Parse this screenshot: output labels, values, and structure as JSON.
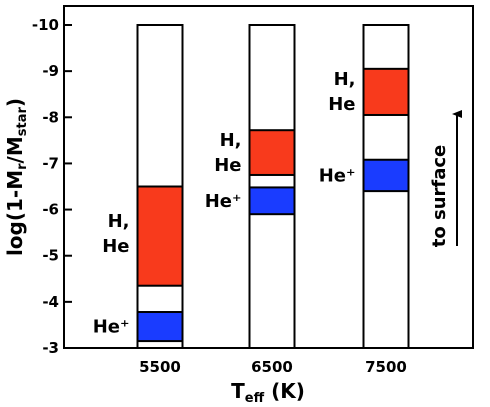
{
  "colors": {
    "h_he": "#f83a1c",
    "he_plus": "#1a3cff",
    "column": "#ffffff",
    "frame": "#000000"
  },
  "chart_data": {
    "type": "bar",
    "title": "",
    "xlabel": {
      "main": "T",
      "sub": "eff",
      "rest": " (K)"
    },
    "ylabel": {
      "pre": "log(1-M",
      "sub1": "r",
      "mid": "/M",
      "sub2": "star",
      "post": ")"
    },
    "ylim": [
      -3,
      -10
    ],
    "yticks": [
      "-3",
      "-4",
      "-5",
      "-6",
      "-7",
      "-8",
      "-9",
      "-10"
    ],
    "categories": [
      "5500",
      "6500",
      "7500"
    ],
    "columns": [
      {
        "teff": "5500",
        "base": -3,
        "top": -10,
        "zones": [
          {
            "kind": "he_plus",
            "from": -3.15,
            "to": -3.78,
            "label": "He⁺"
          },
          {
            "kind": "h_he",
            "from": -4.35,
            "to": -6.5,
            "label_line1": "H,",
            "label_line2": "He"
          }
        ]
      },
      {
        "teff": "6500",
        "base": -3,
        "top": -10,
        "zones": [
          {
            "kind": "he_plus",
            "from": -5.9,
            "to": -6.48,
            "label": "He⁺"
          },
          {
            "kind": "h_he",
            "from": -6.75,
            "to": -7.72,
            "label_line1": "H,",
            "label_line2": "He"
          }
        ]
      },
      {
        "teff": "7500",
        "base": -3,
        "top": -10,
        "zones": [
          {
            "kind": "he_plus",
            "from": -6.4,
            "to": -7.08,
            "label": "He⁺"
          },
          {
            "kind": "h_he",
            "from": -8.05,
            "to": -9.05,
            "label_line1": "H,",
            "label_line2": "He"
          }
        ]
      }
    ],
    "annotation": "to surface",
    "grid": false,
    "legend": "none"
  }
}
